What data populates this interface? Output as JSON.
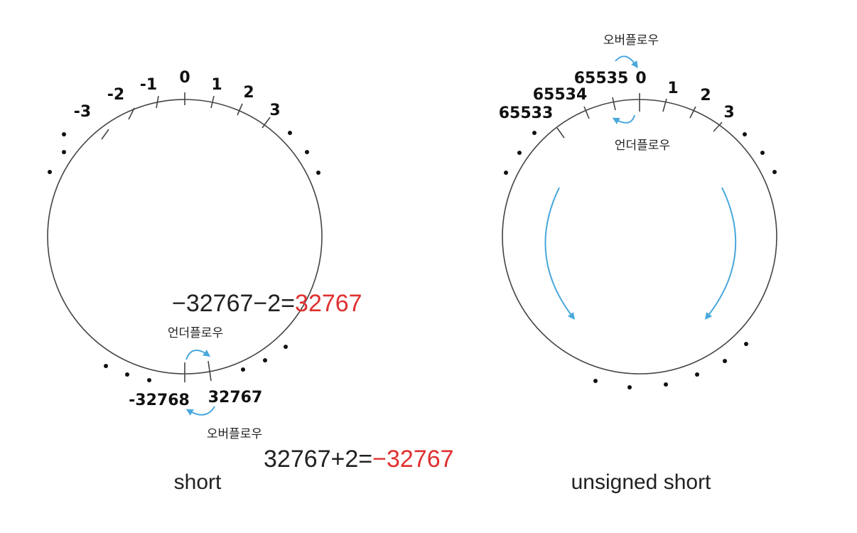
{
  "diagrams": [
    {
      "id": "short",
      "caption": "short",
      "tick_labels": [
        "-3",
        "-2",
        "-1",
        "0",
        "1",
        "2",
        "3"
      ],
      "bottom_left_label": "-32768",
      "bottom_right_label": "32767",
      "underflow_label": "언더플로우",
      "overflow_label": "오버플로우",
      "underflow_equation": {
        "expression": "−32767−2=",
        "result": "32767"
      },
      "overflow_equation": {
        "expression": "32767+2=",
        "result": "−32767"
      }
    },
    {
      "id": "unsigned-short",
      "caption": "unsigned short",
      "tick_labels": [
        "65533",
        "65534",
        "65535",
        "0",
        "1",
        "2",
        "3"
      ],
      "overflow_label": "오버플로우",
      "underflow_label": "언더플로우"
    }
  ],
  "colors": {
    "result_text": "#e03030",
    "arrow": "#4aa8dc",
    "line": "#444444",
    "text": "#222222"
  }
}
